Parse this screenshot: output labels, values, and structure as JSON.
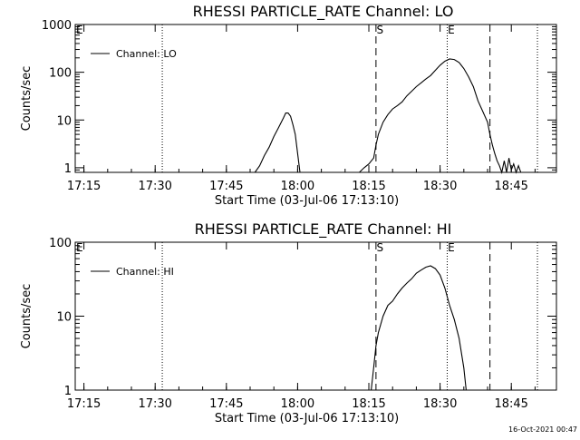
{
  "timestamp": "16-Oct-2021 00:47",
  "chart_data": [
    {
      "type": "line",
      "title": "RHESSI PARTICLE_RATE Channel: LO",
      "xlabel": "Start Time (03-Jul-06 17:13:10)",
      "ylabel": "Counts/sec",
      "y_scale": "log",
      "ylim": [
        0.8,
        1000
      ],
      "xlim": [
        "17:13:10",
        "18:54:30"
      ],
      "x_ticks": [
        "17:15",
        "17:30",
        "17:45",
        "18:00",
        "18:15",
        "18:30",
        "18:45"
      ],
      "y_ticks": [
        "1",
        "10",
        "100",
        "1000"
      ],
      "legend": {
        "label": "Channel: LO",
        "position": "top-left"
      },
      "markers": [
        {
          "label": "S",
          "time": "18:17"
        },
        {
          "label": "E",
          "time": "18:32"
        }
      ],
      "dashed_lines": [
        "18:16.5",
        "18:40.5"
      ],
      "dotted_lines": [
        "17:31.5",
        "18:31.5",
        "18:50.5"
      ],
      "series": [
        {
          "name": "Channel: LO",
          "x": [
            "17:51",
            "17:52",
            "17:53",
            "17:54",
            "17:55",
            "17:56",
            "17:57",
            "17:57.5",
            "17:58",
            "17:58.5",
            "17:59",
            "17:59.5",
            "18:00",
            "18:00.5",
            "18:13",
            "18:14",
            "18:15",
            "18:16",
            "18:16.5",
            "18:17",
            "18:18",
            "18:19",
            "18:20",
            "18:21",
            "18:22",
            "18:23",
            "18:24",
            "18:25",
            "18:26",
            "18:27",
            "18:28",
            "18:29",
            "18:30",
            "18:31",
            "18:32",
            "18:33",
            "18:34",
            "18:35",
            "18:36",
            "18:37",
            "18:38",
            "18:39",
            "18:40",
            "18:40.5",
            "18:41",
            "18:41.5",
            "18:42",
            "18:42.5",
            "18:43",
            "18:43.5",
            "18:44",
            "18:44.5",
            "18:45",
            "18:45.5",
            "18:46",
            "18:46.5",
            "18:47"
          ],
          "y": [
            0.8,
            1.1,
            1.8,
            2.7,
            4.5,
            7,
            11,
            14,
            14,
            12,
            8,
            5,
            2,
            0.8,
            0.8,
            1.0,
            1.2,
            1.6,
            3,
            5,
            9,
            13,
            17,
            20,
            24,
            32,
            40,
            50,
            60,
            72,
            85,
            110,
            140,
            170,
            190,
            185,
            160,
            120,
            80,
            50,
            25,
            15,
            9,
            5,
            3,
            2,
            1.4,
            1.1,
            0.8,
            1.4,
            0.8,
            1.6,
            0.9,
            1.2,
            0.8,
            1.1,
            0.8
          ]
        }
      ]
    },
    {
      "type": "line",
      "title": "RHESSI PARTICLE_RATE Channel: HI",
      "xlabel": "Start Time (03-Jul-06 17:13:10)",
      "ylabel": "Counts/sec",
      "y_scale": "log",
      "ylim": [
        1,
        100
      ],
      "xlim": [
        "17:13:10",
        "18:54:30"
      ],
      "x_ticks": [
        "17:15",
        "17:30",
        "17:45",
        "18:00",
        "18:15",
        "18:30",
        "18:45"
      ],
      "y_ticks": [
        "1",
        "10",
        "100"
      ],
      "legend": {
        "label": "Channel: HI",
        "position": "top-left"
      },
      "markers": [
        {
          "label": "S",
          "time": "18:17"
        },
        {
          "label": "E",
          "time": "18:32"
        }
      ],
      "dashed_lines": [
        "18:16.5",
        "18:40.5"
      ],
      "dotted_lines": [
        "17:31.5",
        "18:31.5",
        "18:50.5"
      ],
      "series": [
        {
          "name": "Channel: HI",
          "x": [
            "18:15.5",
            "18:16",
            "18:16.5",
            "18:17",
            "18:18",
            "18:19",
            "18:20",
            "18:21",
            "18:22",
            "18:23",
            "18:24",
            "18:25",
            "18:26",
            "18:27",
            "18:28",
            "18:29",
            "18:30",
            "18:31",
            "18:32",
            "18:33",
            "18:34",
            "18:35",
            "18:35.5"
          ],
          "y": [
            1,
            2,
            4,
            6,
            10,
            14,
            16,
            20,
            24,
            28,
            32,
            38,
            42,
            46,
            48,
            44,
            36,
            24,
            14,
            9,
            5,
            2,
            1
          ]
        }
      ]
    }
  ]
}
